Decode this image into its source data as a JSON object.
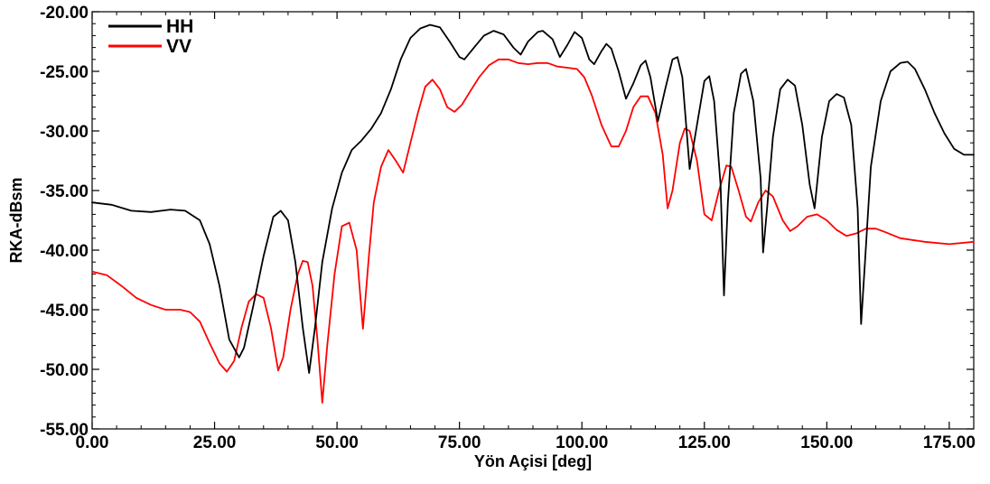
{
  "chart_data": {
    "type": "line",
    "title": "",
    "xlabel": "Yön Açisi [deg]",
    "ylabel": "RKA-dBsm",
    "xlim": [
      0,
      180
    ],
    "ylim": [
      -55,
      -20
    ],
    "x_ticks": [
      0,
      25,
      50,
      75,
      100,
      125,
      150,
      175
    ],
    "x_tick_labels": [
      "0.00",
      "25.00",
      "50.00",
      "75.00",
      "100.00",
      "125.00",
      "150.00",
      "175.00"
    ],
    "y_ticks": [
      -20,
      -25,
      -30,
      -35,
      -40,
      -45,
      -50,
      -55
    ],
    "y_tick_labels": [
      "-20.00",
      "-25.00",
      "-30.00",
      "-35.00",
      "-40.00",
      "-45.00",
      "-50.00",
      "-55.00"
    ],
    "grid": false,
    "legend_position": "top-left",
    "series": [
      {
        "name": "HH",
        "color": "#000000",
        "points": [
          [
            0,
            -36.0
          ],
          [
            4,
            -36.2
          ],
          [
            8,
            -36.7
          ],
          [
            12,
            -36.8
          ],
          [
            16,
            -36.6
          ],
          [
            19,
            -36.7
          ],
          [
            22,
            -37.5
          ],
          [
            24,
            -39.5
          ],
          [
            26,
            -43.0
          ],
          [
            28,
            -47.5
          ],
          [
            30,
            -49.0
          ],
          [
            31,
            -48.2
          ],
          [
            33,
            -44.5
          ],
          [
            35,
            -40.5
          ],
          [
            37,
            -37.2
          ],
          [
            38.5,
            -36.7
          ],
          [
            40,
            -37.5
          ],
          [
            41.5,
            -41.0
          ],
          [
            43,
            -46.5
          ],
          [
            44.3,
            -50.3
          ],
          [
            45.5,
            -46.5
          ],
          [
            47,
            -41.0
          ],
          [
            49,
            -36.5
          ],
          [
            51,
            -33.5
          ],
          [
            53,
            -31.6
          ],
          [
            55,
            -30.8
          ],
          [
            57,
            -29.8
          ],
          [
            59,
            -28.5
          ],
          [
            61,
            -26.5
          ],
          [
            63,
            -24.0
          ],
          [
            65,
            -22.2
          ],
          [
            67,
            -21.4
          ],
          [
            69,
            -21.1
          ],
          [
            71,
            -21.3
          ],
          [
            73,
            -22.5
          ],
          [
            75,
            -23.8
          ],
          [
            76,
            -24.0
          ],
          [
            78,
            -23.0
          ],
          [
            80,
            -22.0
          ],
          [
            82,
            -21.6
          ],
          [
            84,
            -21.9
          ],
          [
            86,
            -23.0
          ],
          [
            87.5,
            -23.6
          ],
          [
            89,
            -22.5
          ],
          [
            91,
            -21.7
          ],
          [
            92,
            -21.6
          ],
          [
            94,
            -22.3
          ],
          [
            95.5,
            -23.8
          ],
          [
            97,
            -22.8
          ],
          [
            98.5,
            -21.7
          ],
          [
            100,
            -22.2
          ],
          [
            101.5,
            -24.0
          ],
          [
            102.5,
            -24.4
          ],
          [
            104,
            -23.3
          ],
          [
            105,
            -22.7
          ],
          [
            106,
            -23.1
          ],
          [
            107.5,
            -25.0
          ],
          [
            109,
            -27.3
          ],
          [
            110.5,
            -26.0
          ],
          [
            112,
            -24.5
          ],
          [
            113,
            -24.1
          ],
          [
            114,
            -25.5
          ],
          [
            115.5,
            -29.2
          ],
          [
            117,
            -26.5
          ],
          [
            118.5,
            -24.0
          ],
          [
            119.5,
            -23.8
          ],
          [
            120.5,
            -25.5
          ],
          [
            122,
            -33.2
          ],
          [
            123.5,
            -29.5
          ],
          [
            125,
            -25.8
          ],
          [
            126,
            -25.4
          ],
          [
            127,
            -27.5
          ],
          [
            128.3,
            -34.5
          ],
          [
            129,
            -43.8
          ],
          [
            129.8,
            -36.0
          ],
          [
            131,
            -28.5
          ],
          [
            132.5,
            -25.2
          ],
          [
            133.5,
            -24.8
          ],
          [
            135,
            -27.5
          ],
          [
            136.5,
            -34.0
          ],
          [
            137,
            -40.2
          ],
          [
            137.8,
            -36.5
          ],
          [
            139,
            -30.5
          ],
          [
            140.5,
            -26.5
          ],
          [
            142,
            -25.7
          ],
          [
            143.5,
            -26.2
          ],
          [
            145,
            -29.5
          ],
          [
            146.5,
            -34.5
          ],
          [
            147.5,
            -36.5
          ],
          [
            149,
            -30.5
          ],
          [
            150.5,
            -27.5
          ],
          [
            152,
            -26.9
          ],
          [
            153.5,
            -27.2
          ],
          [
            155,
            -29.5
          ],
          [
            156.3,
            -36.5
          ],
          [
            157,
            -46.2
          ],
          [
            157.8,
            -41.0
          ],
          [
            159,
            -33.0
          ],
          [
            161,
            -27.5
          ],
          [
            163,
            -25.0
          ],
          [
            165,
            -24.3
          ],
          [
            166.5,
            -24.2
          ],
          [
            168,
            -24.8
          ],
          [
            170,
            -26.5
          ],
          [
            172,
            -28.5
          ],
          [
            174,
            -30.2
          ],
          [
            176,
            -31.5
          ],
          [
            178,
            -32.0
          ],
          [
            180,
            -32.0
          ]
        ]
      },
      {
        "name": "VV",
        "color": "#ff0000",
        "points": [
          [
            0,
            -41.8
          ],
          [
            3,
            -42.1
          ],
          [
            6,
            -43.0
          ],
          [
            9,
            -44.0
          ],
          [
            12,
            -44.6
          ],
          [
            15,
            -45.0
          ],
          [
            18,
            -45.0
          ],
          [
            20,
            -45.2
          ],
          [
            22,
            -46.0
          ],
          [
            24,
            -47.8
          ],
          [
            26,
            -49.5
          ],
          [
            27.5,
            -50.2
          ],
          [
            29,
            -49.3
          ],
          [
            30.5,
            -46.5
          ],
          [
            32,
            -44.3
          ],
          [
            33.5,
            -43.7
          ],
          [
            35,
            -44.0
          ],
          [
            36.5,
            -46.5
          ],
          [
            38,
            -50.1
          ],
          [
            39,
            -49.0
          ],
          [
            40.5,
            -45.0
          ],
          [
            42,
            -42.0
          ],
          [
            43,
            -40.9
          ],
          [
            44,
            -41.0
          ],
          [
            45,
            -43.0
          ],
          [
            46,
            -47.5
          ],
          [
            47,
            -52.8
          ],
          [
            48,
            -48.0
          ],
          [
            49.5,
            -42.0
          ],
          [
            51,
            -38.0
          ],
          [
            52.5,
            -37.7
          ],
          [
            54,
            -40.0
          ],
          [
            55.3,
            -46.6
          ],
          [
            56.5,
            -40.5
          ],
          [
            57.5,
            -36.0
          ],
          [
            59,
            -33.0
          ],
          [
            60.5,
            -31.6
          ],
          [
            62,
            -32.5
          ],
          [
            63.5,
            -33.5
          ],
          [
            65,
            -31.0
          ],
          [
            66.5,
            -28.5
          ],
          [
            68,
            -26.3
          ],
          [
            69.5,
            -25.7
          ],
          [
            71,
            -26.5
          ],
          [
            72.5,
            -28.0
          ],
          [
            74,
            -28.4
          ],
          [
            75.5,
            -27.8
          ],
          [
            77,
            -26.8
          ],
          [
            79,
            -25.5
          ],
          [
            81,
            -24.5
          ],
          [
            83,
            -24.0
          ],
          [
            85,
            -24.0
          ],
          [
            87,
            -24.3
          ],
          [
            89,
            -24.4
          ],
          [
            91,
            -24.3
          ],
          [
            93,
            -24.3
          ],
          [
            95,
            -24.6
          ],
          [
            97,
            -24.7
          ],
          [
            99,
            -24.8
          ],
          [
            100.5,
            -25.5
          ],
          [
            102,
            -27.0
          ],
          [
            104,
            -29.5
          ],
          [
            106,
            -31.3
          ],
          [
            107.5,
            -31.3
          ],
          [
            109,
            -30.0
          ],
          [
            110.5,
            -28.0
          ],
          [
            112,
            -27.1
          ],
          [
            113.5,
            -27.1
          ],
          [
            115,
            -28.5
          ],
          [
            116.5,
            -32.0
          ],
          [
            117.5,
            -36.5
          ],
          [
            118.5,
            -35.0
          ],
          [
            120,
            -31.0
          ],
          [
            121,
            -29.8
          ],
          [
            122,
            -30.0
          ],
          [
            123.5,
            -32.5
          ],
          [
            125,
            -37.0
          ],
          [
            126.5,
            -37.5
          ],
          [
            128,
            -35.0
          ],
          [
            129.5,
            -32.9
          ],
          [
            130.5,
            -33.0
          ],
          [
            132,
            -35.0
          ],
          [
            133.5,
            -37.2
          ],
          [
            134.5,
            -37.6
          ],
          [
            136,
            -36.0
          ],
          [
            137.5,
            -35.0
          ],
          [
            139,
            -35.5
          ],
          [
            141,
            -37.5
          ],
          [
            142.5,
            -38.4
          ],
          [
            144,
            -38.0
          ],
          [
            146,
            -37.2
          ],
          [
            148,
            -37.0
          ],
          [
            150,
            -37.5
          ],
          [
            152,
            -38.3
          ],
          [
            154,
            -38.8
          ],
          [
            156,
            -38.6
          ],
          [
            158,
            -38.2
          ],
          [
            160,
            -38.2
          ],
          [
            162,
            -38.5
          ],
          [
            165,
            -39.0
          ],
          [
            170,
            -39.3
          ],
          [
            175,
            -39.5
          ],
          [
            180,
            -39.3
          ]
        ]
      }
    ]
  }
}
